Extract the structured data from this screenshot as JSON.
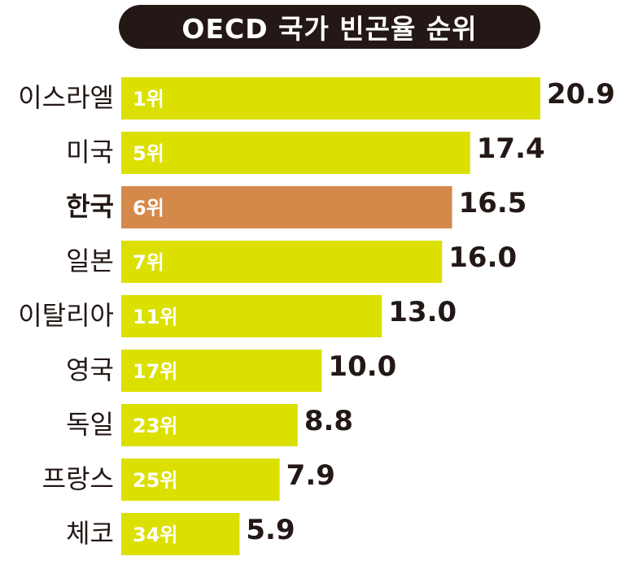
{
  "chart_data": {
    "type": "bar",
    "orientation": "horizontal",
    "title": "OECD 국가 빈곤율 순위",
    "categories": [
      "이스라엘",
      "미국",
      "한국",
      "일본",
      "이탈리아",
      "영국",
      "독일",
      "프랑스",
      "체코"
    ],
    "ranks": [
      "1위",
      "5위",
      "6위",
      "7위",
      "11위",
      "17위",
      "23위",
      "25위",
      "34위"
    ],
    "values": [
      20.9,
      17.4,
      16.5,
      16.0,
      13.0,
      10.0,
      8.8,
      7.9,
      5.9
    ],
    "value_labels": [
      "20.9",
      "17.4",
      "16.5",
      "16.0",
      "13.0",
      "10.0",
      "8.8",
      "7.9",
      "5.9"
    ],
    "highlight_category": "한국",
    "xlim": [
      0,
      20.9
    ],
    "grid": false,
    "legend": "none",
    "colors": {
      "bar": "#dbe000",
      "highlight_bar": "#d4894a",
      "title_background": "#231815",
      "title_text": "#ffffff",
      "rank_text": "#ffffff",
      "label_text": "#231815"
    }
  }
}
